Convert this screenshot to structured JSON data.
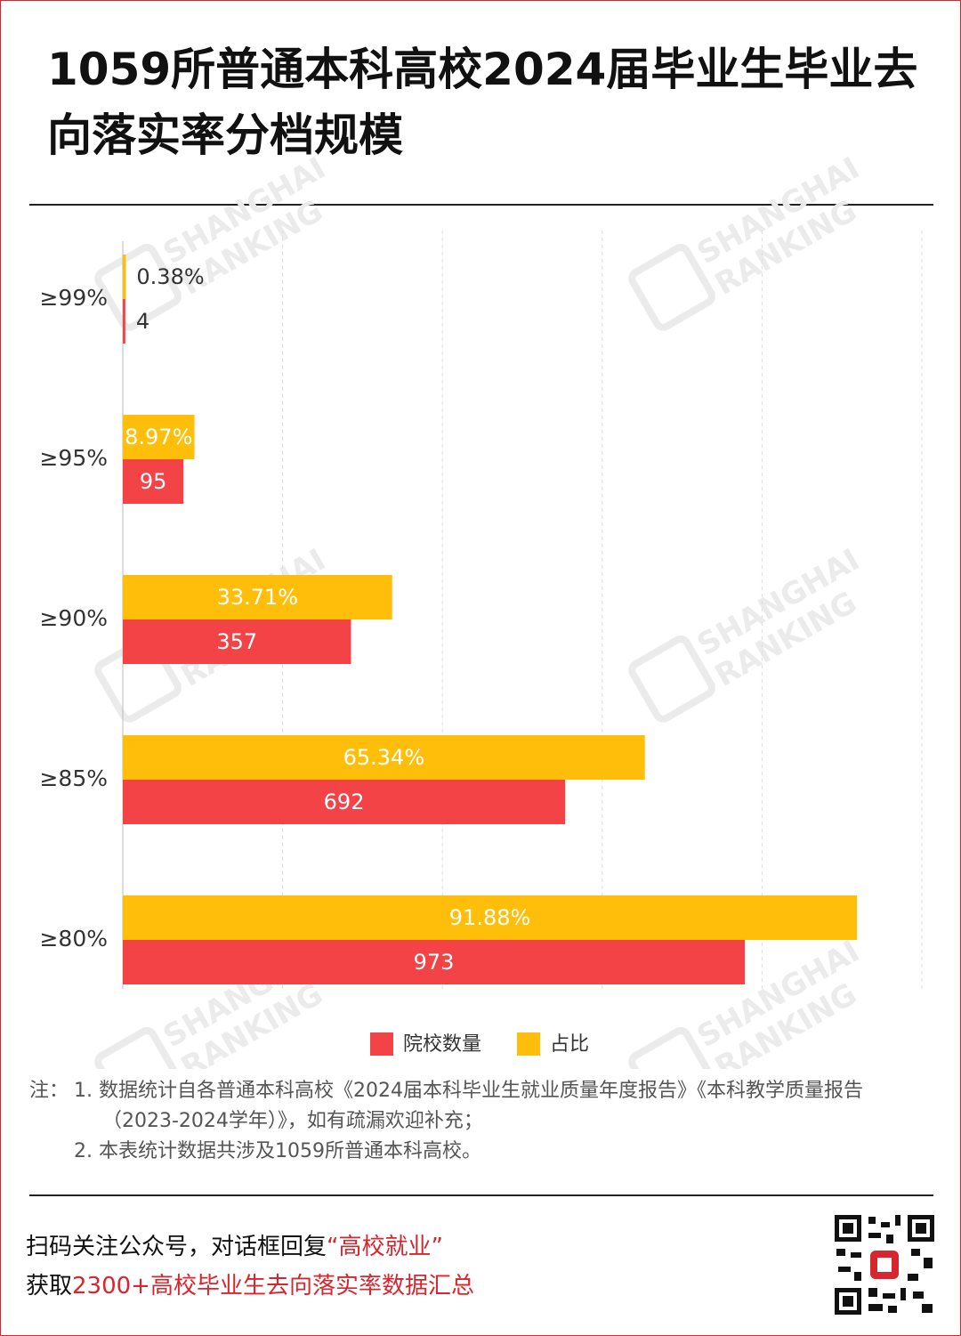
{
  "title": "1059所普通本科高校2024届毕业生毕业去向落实率分档规模",
  "chart_data": {
    "type": "hbar",
    "categories": [
      "≥99%",
      "≥95%",
      "≥90%",
      "≥85%",
      "≥80%"
    ],
    "series": [
      {
        "name": "院校数量",
        "color": "#f44346",
        "values": [
          4,
          95,
          357,
          692,
          973
        ]
      },
      {
        "name": "占比",
        "color": "#ffbe0a",
        "axis": "x2",
        "values": [
          0.38,
          8.97,
          33.71,
          65.34,
          91.88
        ],
        "value_labels": [
          "0.38%",
          "8.97%",
          "33.71%",
          "65.34%",
          "91.88%"
        ]
      }
    ],
    "xlim": [
      0,
      1250
    ],
    "x2lim": [
      0,
      100
    ],
    "x2ticks": [
      0,
      20,
      40,
      60,
      80,
      100
    ],
    "grid": true
  },
  "watermark": [
    "SHANGHAI",
    "RANKING"
  ],
  "notes": {
    "label": "注：",
    "items": [
      "1. 数据统计自各普通本科高校《2024届本科毕业生就业质量年度报告》《本科教学质量报告（2023-2024学年）》，如有疏漏欢迎补充；",
      "2. 本表统计数据共涉及1059所普通本科高校。"
    ]
  },
  "footer": [
    [
      "扫码关注公众号，对话框回复",
      "“高校就业”"
    ],
    [
      "获取",
      "2300+高校毕业生去向落实率数据汇总"
    ]
  ]
}
